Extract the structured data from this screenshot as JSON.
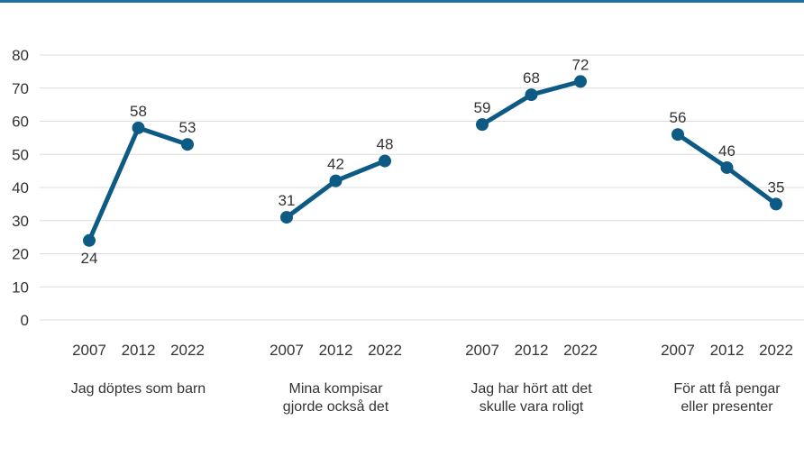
{
  "chart_data": {
    "type": "line",
    "title": "",
    "xlabel": "",
    "ylabel": "",
    "ylim": [
      0,
      80
    ],
    "yticks": [
      0,
      10,
      20,
      30,
      40,
      50,
      60,
      70,
      80
    ],
    "grid": true,
    "legend": "none",
    "line_color": "#0d5a85",
    "rule_color": "#1f6fa3",
    "grid_color": "#dcdcdc",
    "groups": [
      {
        "label_lines": [
          "Jag döptes som barn"
        ],
        "x": [
          "2007",
          "2012",
          "2022"
        ],
        "values": [
          24,
          58,
          53
        ]
      },
      {
        "label_lines": [
          "Mina kompisar",
          "gjorde också det"
        ],
        "x": [
          "2007",
          "2012",
          "2022"
        ],
        "values": [
          31,
          42,
          48
        ]
      },
      {
        "label_lines": [
          "Jag har hört att det",
          "skulle vara roligt"
        ],
        "x": [
          "2007",
          "2012",
          "2022"
        ],
        "values": [
          59,
          68,
          72
        ]
      },
      {
        "label_lines": [
          "För att få pengar",
          "eller presenter"
        ],
        "x": [
          "2007",
          "2012",
          "2022"
        ],
        "values": [
          56,
          46,
          35
        ]
      }
    ]
  }
}
